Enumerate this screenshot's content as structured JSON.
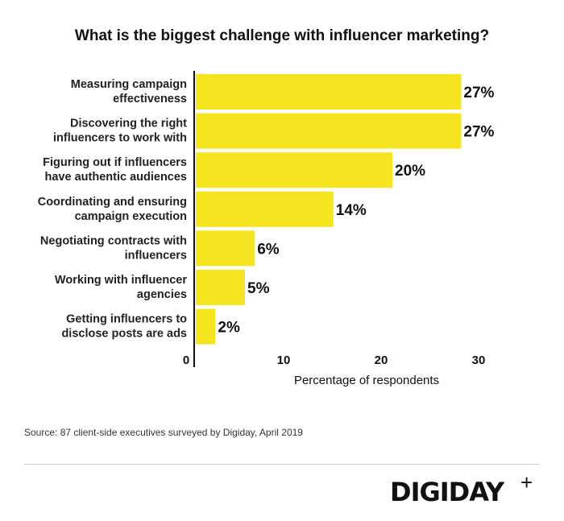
{
  "chart_data": {
    "type": "bar",
    "orientation": "horizontal",
    "title": "What is the biggest challenge with influencer marketing?",
    "xlabel": "Percentage of respondents",
    "ylabel": "",
    "xlim": [
      0,
      30
    ],
    "xticks": [
      0,
      10,
      20,
      30
    ],
    "categories": [
      [
        "Measuring campaign",
        "effectiveness"
      ],
      [
        "Discovering the right",
        "influencers to work with"
      ],
      [
        "Figuring out if influencers",
        "have authentic audiences"
      ],
      [
        "Coordinating and ensuring",
        "campaign execution"
      ],
      [
        "Negotiating contracts with",
        "influencers"
      ],
      [
        "Working with influencer",
        "agencies"
      ],
      [
        "Getting influencers to",
        "disclose posts are ads"
      ]
    ],
    "values": [
      27,
      27,
      20,
      14,
      6,
      5,
      2
    ],
    "labels": [
      "27%",
      "27%",
      "20%",
      "14%",
      "6%",
      "5%",
      "2%"
    ],
    "bar_color": "#f5e51f",
    "grid": false
  },
  "source": "Source: 87 client-side executives surveyed by Digiday, April 2019",
  "logo": {
    "text": "DIGIDAY",
    "plus": "+"
  }
}
